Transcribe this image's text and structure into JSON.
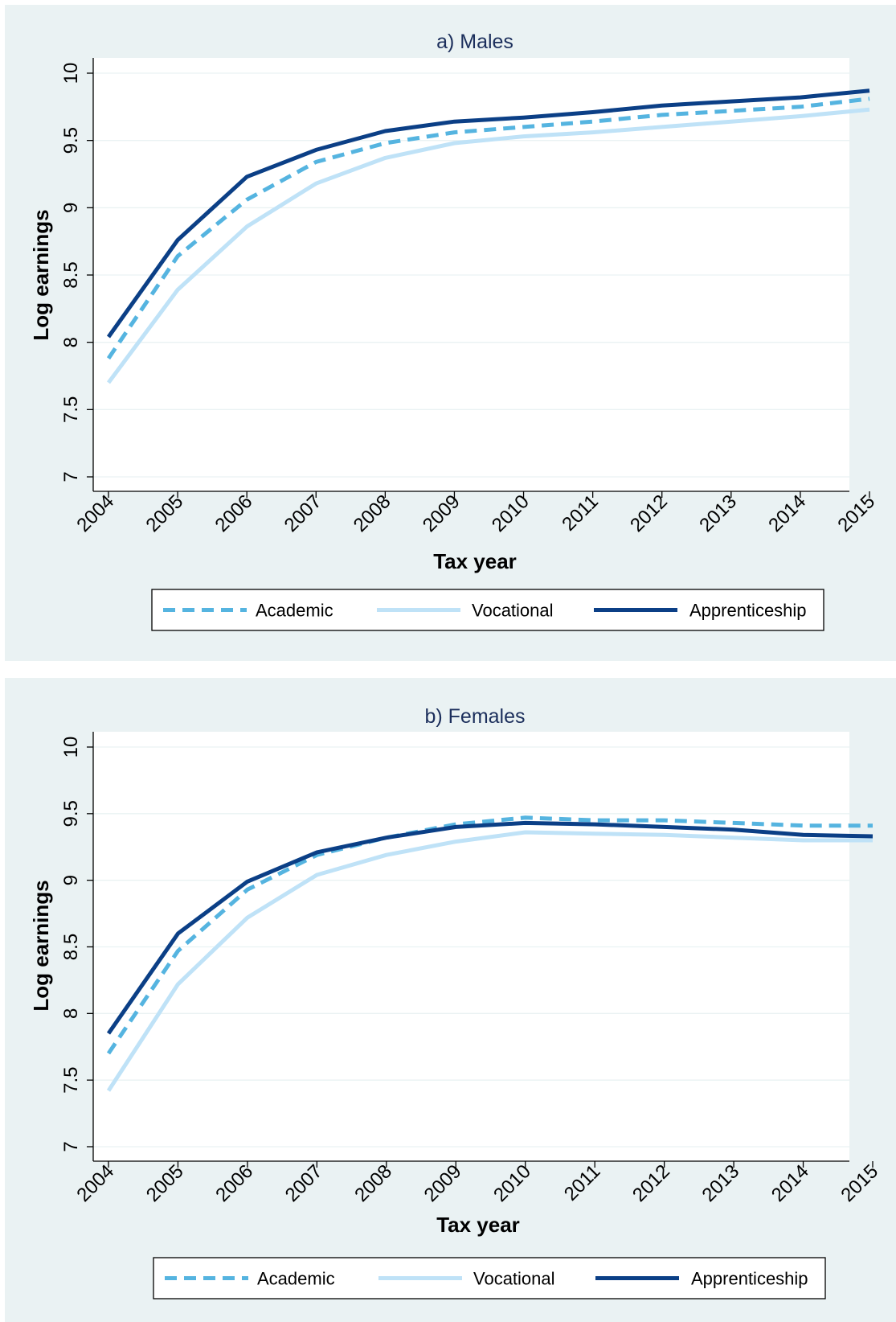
{
  "colors": {
    "academic": "#55b4e0",
    "vocational": "#bfe2f7",
    "apprenticeship": "#0b3f86",
    "panel_bg": "#eaf2f3",
    "title": "#1c2f5c"
  },
  "chart_data": [
    {
      "type": "line",
      "title": "a) Males",
      "xlabel": "Tax year",
      "ylabel": "Log earnings",
      "x": [
        "2004",
        "2005",
        "2006",
        "2007",
        "2008",
        "2009",
        "2010",
        "2011",
        "2012",
        "2013",
        "2014",
        "2015"
      ],
      "y_ticks": [
        "7",
        "7.5",
        "8",
        "8.5",
        "9",
        "9.5",
        "10"
      ],
      "ylim": [
        7,
        10
      ],
      "grid": true,
      "legend_position": "bottom",
      "series": [
        {
          "name": "Academic",
          "style": "dashed",
          "color_key": "academic",
          "values": [
            7.88,
            8.64,
            9.06,
            9.34,
            9.48,
            9.56,
            9.6,
            9.64,
            9.69,
            9.72,
            9.75,
            9.81
          ]
        },
        {
          "name": "Vocational",
          "style": "solid",
          "color_key": "vocational",
          "values": [
            7.7,
            8.39,
            8.86,
            9.18,
            9.37,
            9.48,
            9.53,
            9.56,
            9.6,
            9.64,
            9.68,
            9.73
          ]
        },
        {
          "name": "Apprenticeship",
          "style": "solid",
          "color_key": "apprenticeship",
          "values": [
            8.04,
            8.76,
            9.23,
            9.43,
            9.57,
            9.64,
            9.67,
            9.71,
            9.76,
            9.79,
            9.82,
            9.87
          ]
        }
      ]
    },
    {
      "type": "line",
      "title": "b) Females",
      "xlabel": "Tax year",
      "ylabel": "Log earnings",
      "x": [
        "2004",
        "2005",
        "2006",
        "2007",
        "2008",
        "2009",
        "2010",
        "2011",
        "2012",
        "2013",
        "2014",
        "2015"
      ],
      "y_ticks": [
        "7",
        "7.5",
        "8",
        "8.5",
        "9",
        "9.5",
        "10"
      ],
      "ylim": [
        7,
        10
      ],
      "grid": true,
      "legend_position": "bottom",
      "series": [
        {
          "name": "Academic",
          "style": "dashed",
          "color_key": "academic",
          "values": [
            7.7,
            8.47,
            8.93,
            9.19,
            9.32,
            9.42,
            9.47,
            9.45,
            9.45,
            9.43,
            9.41,
            9.41
          ]
        },
        {
          "name": "Vocational",
          "style": "solid",
          "color_key": "vocational",
          "values": [
            7.42,
            8.22,
            8.72,
            9.04,
            9.19,
            9.29,
            9.36,
            9.35,
            9.34,
            9.32,
            9.3,
            9.3
          ]
        },
        {
          "name": "Apprenticeship",
          "style": "solid",
          "color_key": "apprenticeship",
          "values": [
            7.85,
            8.6,
            8.99,
            9.21,
            9.32,
            9.4,
            9.43,
            9.42,
            9.4,
            9.38,
            9.34,
            9.33
          ]
        }
      ]
    }
  ]
}
